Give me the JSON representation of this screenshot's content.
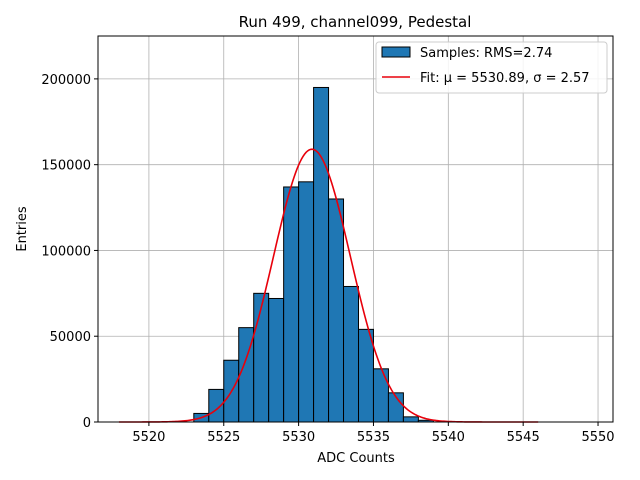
{
  "chart_data": {
    "type": "histogram",
    "title": "Run 499, channel099, Pedestal",
    "xlabel": "ADC Counts",
    "ylabel": "Entries",
    "xlim": [
      5516.6,
      5551.0
    ],
    "ylim": [
      0,
      225000
    ],
    "xticks": [
      5520,
      5525,
      5530,
      5535,
      5540,
      5545,
      5550
    ],
    "yticks": [
      0,
      50000,
      100000,
      150000,
      200000
    ],
    "grid": true,
    "legend_position": "top-right",
    "bin_width": 1,
    "bins": [
      {
        "x": 5523,
        "count": 5000
      },
      {
        "x": 5524,
        "count": 19000
      },
      {
        "x": 5525,
        "count": 36000
      },
      {
        "x": 5526,
        "count": 55000
      },
      {
        "x": 5527,
        "count": 75000
      },
      {
        "x": 5528,
        "count": 72000
      },
      {
        "x": 5529,
        "count": 137000
      },
      {
        "x": 5530,
        "count": 140000
      },
      {
        "x": 5531,
        "count": 195000
      },
      {
        "x": 5532,
        "count": 130000
      },
      {
        "x": 5533,
        "count": 79000
      },
      {
        "x": 5534,
        "count": 54000
      },
      {
        "x": 5535,
        "count": 31000
      },
      {
        "x": 5536,
        "count": 17000
      },
      {
        "x": 5537,
        "count": 3000
      },
      {
        "x": 5538,
        "count": 1000
      }
    ],
    "fit": {
      "mu": 5530.89,
      "sigma": 2.57,
      "amplitude": 159000,
      "x_range": [
        5518,
        5546
      ]
    },
    "series": [
      {
        "name": "Samples: RMS=2.74",
        "color": "#1f77b4",
        "kind": "histogram"
      },
      {
        "name": "Fit: μ = 5530.89, σ = 2.57",
        "color": "#e8000b",
        "kind": "line"
      }
    ]
  }
}
